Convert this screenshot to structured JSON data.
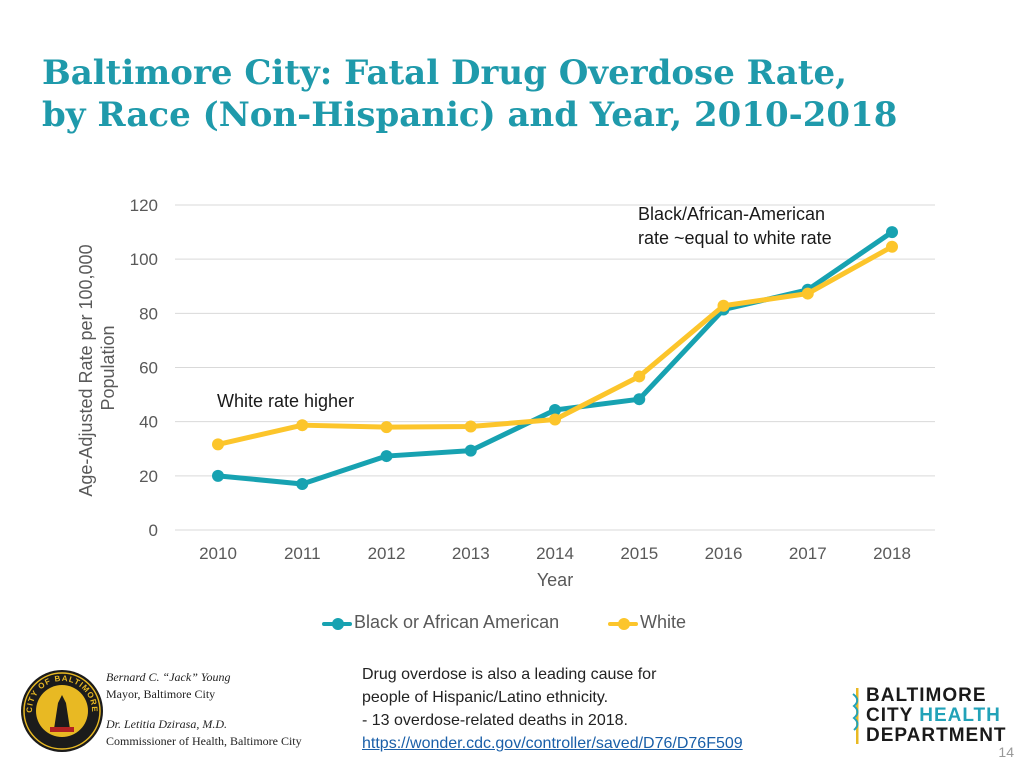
{
  "title": {
    "line1": "Baltimore City: Fatal Drug Overdose Rate,",
    "line2": "by Race (Non-Hispanic) and Year, 2010-2018"
  },
  "chart_data": {
    "type": "line",
    "title": "",
    "xlabel": "Year",
    "ylabel": "Age-Adjusted Rate per 100,000 Population",
    "ylabel_lines": [
      "Age-Adjusted Rate per 100,000",
      "Population"
    ],
    "ylim": [
      0,
      120
    ],
    "yticks": [
      0,
      20,
      40,
      60,
      80,
      100,
      120
    ],
    "grid": true,
    "categories": [
      "2010",
      "2011",
      "2012",
      "2013",
      "2014",
      "2015",
      "2016",
      "2017",
      "2018"
    ],
    "series": [
      {
        "name": "Black or African American",
        "color": "#17a2b1",
        "values": [
          20.0,
          17.0,
          27.3,
          29.3,
          44.3,
          48.3,
          81.4,
          88.7,
          110.0
        ]
      },
      {
        "name": "White",
        "color": "#fcc52b",
        "values": [
          31.6,
          38.7,
          38.0,
          38.2,
          40.8,
          56.7,
          82.8,
          87.3,
          104.6
        ]
      }
    ],
    "annotations": [
      {
        "id": "white-higher",
        "lines": [
          "White rate higher"
        ]
      },
      {
        "id": "equal",
        "lines": [
          "Black/African-American",
          "rate ~equal to white rate"
        ]
      }
    ]
  },
  "footer": {
    "mayor_name": "Bernard C. “Jack” Young",
    "mayor_title": "Mayor, Baltimore City",
    "commissioner_name": "Dr. Letitia Dzirasa, M.D.",
    "commissioner_title": "Commissioner of Health, Baltimore City",
    "note_line1": "Drug overdose is also a leading cause for",
    "note_line2": "people of Hispanic/Latino ethnicity.",
    "note_line3": "- 13 overdose-related deaths in 2018.",
    "note_link": "https://wonder.cdc.gov/controller/saved/D76/D76F509",
    "seal_text": "CITY OF BALTIMORE",
    "logo_line1": "BALTIMORE",
    "logo_line2a": "CITY ",
    "logo_line2b": "HEALTH",
    "logo_line3": "DEPARTMENT",
    "page_number": "14"
  }
}
